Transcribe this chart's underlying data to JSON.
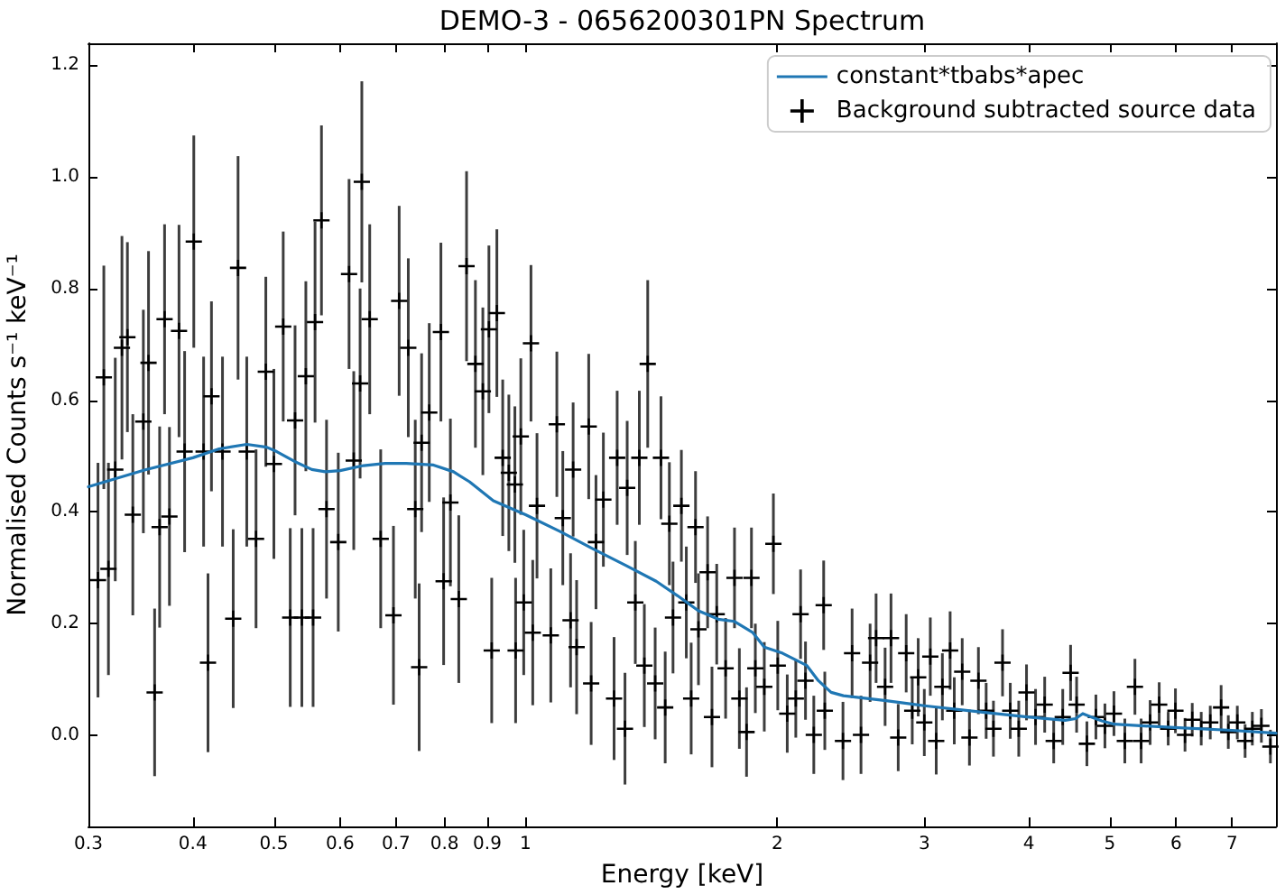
{
  "chart_data": {
    "type": "scatter",
    "title": "DEMO-3 - 0656200301PN Spectrum",
    "xlabel": "Energy [keV]",
    "ylabel": "Normalised Counts s⁻¹ keV⁻¹",
    "log": "x",
    "xlim": [
      0.3,
      7.9
    ],
    "xticks": [
      0.3,
      0.4,
      0.5,
      0.6,
      0.7,
      0.8,
      0.9,
      1,
      2,
      3,
      4,
      5,
      6,
      7
    ],
    "ylim": [
      -0.163,
      1.239
    ],
    "yticks": [
      {
        "value": 0,
        "label": "0.0"
      },
      0.2,
      0.4,
      0.6,
      0.8,
      {
        "value": 1,
        "label": "1.0"
      },
      1.2
    ],
    "legend": "top right",
    "series": [
      {
        "name": "constant*tbabs*apec",
        "type": "line",
        "color": "#1f77b4",
        "marker": "none",
        "x": [
          0.3,
          0.35,
          0.4,
          0.43,
          0.464,
          0.49,
          0.504,
          0.53,
          0.555,
          0.576,
          0.6,
          0.64,
          0.679,
          0.72,
          0.776,
          0.82,
          0.857,
          0.915,
          1.0,
          1.1,
          1.2,
          1.319,
          1.433,
          1.52,
          1.61,
          1.7,
          1.778,
          1.87,
          1.93,
          2.03,
          2.17,
          2.24,
          2.32,
          2.4,
          2.7,
          3.0,
          3.5,
          3.98,
          4.42,
          4.55,
          4.64,
          4.75,
          4.89,
          5.06,
          5.97,
          7.0,
          7.9
        ],
        "values": [
          0.445,
          0.475,
          0.497,
          0.513,
          0.521,
          0.516,
          0.508,
          0.49,
          0.476,
          0.472,
          0.474,
          0.483,
          0.487,
          0.487,
          0.484,
          0.472,
          0.454,
          0.42,
          0.395,
          0.365,
          0.335,
          0.304,
          0.276,
          0.25,
          0.223,
          0.208,
          0.204,
          0.184,
          0.158,
          0.147,
          0.125,
          0.098,
          0.077,
          0.071,
          0.062,
          0.053,
          0.042,
          0.033,
          0.027,
          0.03,
          0.039,
          0.033,
          0.026,
          0.02,
          0.014,
          0.009,
          0.004
        ]
      },
      {
        "name": "Background subtracted source data",
        "color": "#000000",
        "marker": "cross",
        "x": [
          0.308,
          0.313,
          0.317,
          0.323,
          0.329,
          0.334,
          0.339,
          0.349,
          0.354,
          0.36,
          0.365,
          0.37,
          0.375,
          0.385,
          0.391,
          0.401,
          0.412,
          0.417,
          0.421,
          0.434,
          0.447,
          0.453,
          0.464,
          0.476,
          0.489,
          0.5,
          0.513,
          0.523,
          0.53,
          0.54,
          0.546,
          0.557,
          0.56,
          0.57,
          0.578,
          0.597,
          0.615,
          0.623,
          0.634,
          0.637,
          0.651,
          0.671,
          0.695,
          0.706,
          0.724,
          0.738,
          0.746,
          0.751,
          0.767,
          0.792,
          0.798,
          0.813,
          0.832,
          0.85,
          0.871,
          0.889,
          0.904,
          0.911,
          0.924,
          0.939,
          0.955,
          0.971,
          0.973,
          0.987,
          0.995,
          1.015,
          1.02,
          1.032,
          1.072,
          1.09,
          1.108,
          1.132,
          1.14,
          1.151,
          1.19,
          1.198,
          1.214,
          1.239,
          1.276,
          1.287,
          1.315,
          1.323,
          1.353,
          1.368,
          1.387,
          1.4,
          1.429,
          1.452,
          1.469,
          1.486,
          1.501,
          1.536,
          1.557,
          1.578,
          1.597,
          1.61,
          1.651,
          1.671,
          1.693,
          1.735,
          1.778,
          1.802,
          1.838,
          1.863,
          1.883,
          1.93,
          1.979,
          2.003,
          2.056,
          2.105,
          2.133,
          2.162,
          2.212,
          2.273,
          2.28,
          2.397,
          2.458,
          2.519,
          2.583,
          2.626,
          2.692,
          2.736,
          2.791,
          2.853,
          2.901,
          2.949,
          2.999,
          3.049,
          3.099,
          3.152,
          3.22,
          3.257,
          3.329,
          3.396,
          3.481,
          3.556,
          3.628,
          3.72,
          3.8,
          3.89,
          3.974,
          4.074,
          4.178,
          4.283,
          4.391,
          4.487,
          4.562,
          4.693,
          4.811,
          4.932,
          5.056,
          5.21,
          5.357,
          5.449,
          5.586,
          5.727,
          5.871,
          5.989,
          6.149,
          6.273,
          6.43,
          6.592,
          6.792,
          6.928,
          7.102,
          7.256,
          7.402,
          7.589,
          7.78
        ],
        "values": [
          0.278,
          0.641,
          0.298,
          0.476,
          0.694,
          0.713,
          0.395,
          0.562,
          0.667,
          0.077,
          0.373,
          0.745,
          0.392,
          0.724,
          0.508,
          0.884,
          0.508,
          0.13,
          0.607,
          0.508,
          0.209,
          0.837,
          0.508,
          0.352,
          0.651,
          0.486,
          0.732,
          0.211,
          0.564,
          0.211,
          0.643,
          0.211,
          0.74,
          0.922,
          0.405,
          0.346,
          0.826,
          0.492,
          0.63,
          0.991,
          0.745,
          0.352,
          0.215,
          0.778,
          0.694,
          0.405,
          0.122,
          0.524,
          0.578,
          0.722,
          0.276,
          0.417,
          0.244,
          0.84,
          0.665,
          0.616,
          0.727,
          0.152,
          0.756,
          0.497,
          0.47,
          0.449,
          0.152,
          0.535,
          0.238,
          0.702,
          0.184,
          0.411,
          0.179,
          0.557,
          0.389,
          0.206,
          0.476,
          0.158,
          0.553,
          0.093,
          0.346,
          0.422,
          0.066,
          0.497,
          0.012,
          0.443,
          0.238,
          0.497,
          0.125,
          0.665,
          0.093,
          0.497,
          0.05,
          0.379,
          0.211,
          0.411,
          0.238,
          0.066,
          0.373,
          0.19,
          0.292,
          0.033,
          0.217,
          0.12,
          0.282,
          0.066,
          0.006,
          0.282,
          0.12,
          0.087,
          0.343,
          0.125,
          0.039,
          0.066,
          0.217,
          0.098,
          0.001,
          0.233,
          0.044,
          -0.01,
          0.147,
          0.001,
          0.13,
          0.174,
          0.087,
          0.174,
          -0.004,
          0.147,
          0.044,
          0.104,
          0.023,
          0.141,
          -0.01,
          0.087,
          0.152,
          0.044,
          0.114,
          -0.004,
          0.098,
          0.044,
          0.012,
          0.13,
          0.044,
          0.012,
          0.077,
          0.033,
          0.055,
          -0.01,
          0.033,
          0.112,
          0.055,
          -0.015,
          0.033,
          0.017,
          0.039,
          -0.01,
          0.087,
          -0.01,
          0.023,
          0.055,
          0.012,
          0.044,
          0.001,
          0.028,
          0.012,
          0.023,
          0.05,
          0.006,
          0.023,
          -0.01,
          0.012,
          0.017,
          -0.02
        ],
        "errors": [
          0.21,
          0.2,
          0.19,
          0.2,
          0.2,
          0.17,
          0.18,
          0.2,
          0.2,
          0.15,
          0.18,
          0.17,
          0.16,
          0.19,
          0.18,
          0.19,
          0.17,
          0.16,
          0.17,
          0.17,
          0.16,
          0.2,
          0.17,
          0.16,
          0.17,
          0.17,
          0.17,
          0.16,
          0.17,
          0.16,
          0.17,
          0.16,
          0.18,
          0.17,
          0.16,
          0.16,
          0.17,
          0.16,
          0.17,
          0.18,
          0.17,
          0.16,
          0.16,
          0.17,
          0.16,
          0.16,
          0.15,
          0.16,
          0.16,
          0.16,
          0.15,
          0.15,
          0.15,
          0.17,
          0.15,
          0.15,
          0.15,
          0.13,
          0.15,
          0.14,
          0.14,
          0.14,
          0.13,
          0.14,
          0.13,
          0.14,
          0.13,
          0.13,
          0.12,
          0.13,
          0.12,
          0.12,
          0.12,
          0.12,
          0.13,
          0.11,
          0.12,
          0.12,
          0.11,
          0.12,
          0.1,
          0.12,
          0.11,
          0.12,
          0.11,
          0.15,
          0.1,
          0.11,
          0.1,
          0.11,
          0.1,
          0.1,
          0.1,
          0.1,
          0.1,
          0.1,
          0.1,
          0.09,
          0.09,
          0.09,
          0.09,
          0.09,
          0.08,
          0.09,
          0.08,
          0.08,
          0.09,
          0.08,
          0.07,
          0.07,
          0.08,
          0.07,
          0.07,
          0.08,
          0.07,
          0.07,
          0.08,
          0.07,
          0.07,
          0.08,
          0.07,
          0.08,
          0.06,
          0.07,
          0.06,
          0.07,
          0.06,
          0.07,
          0.06,
          0.06,
          0.07,
          0.06,
          0.06,
          0.05,
          0.06,
          0.05,
          0.05,
          0.06,
          0.05,
          0.05,
          0.05,
          0.05,
          0.05,
          0.04,
          0.05,
          0.05,
          0.05,
          0.04,
          0.04,
          0.04,
          0.04,
          0.04,
          0.05,
          0.04,
          0.04,
          0.04,
          0.03,
          0.04,
          0.03,
          0.03,
          0.03,
          0.03,
          0.04,
          0.03,
          0.03,
          0.03,
          0.03,
          0.03,
          0.03
        ]
      }
    ]
  }
}
